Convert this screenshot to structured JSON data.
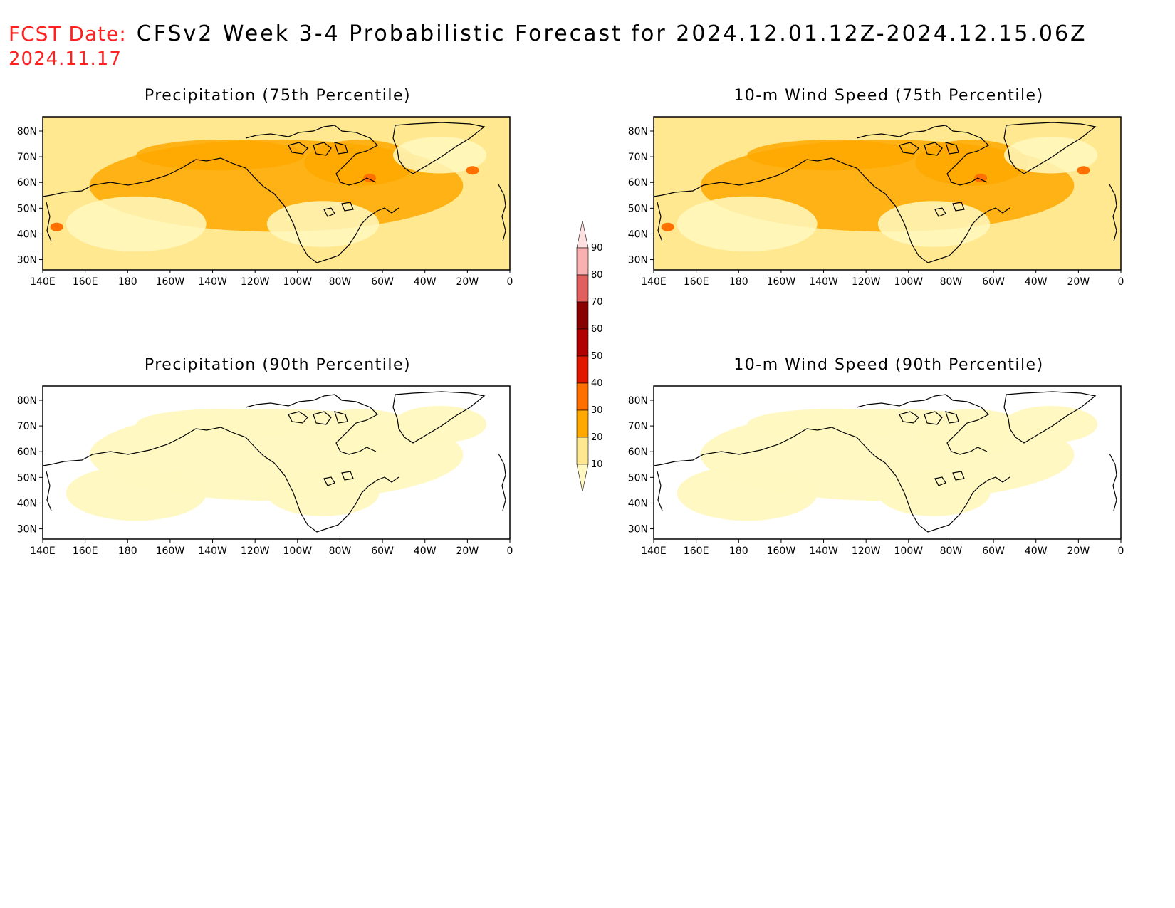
{
  "header": {
    "fcst_label": "FCST Date:",
    "title": "CFSv2 Week 3-4 Probabilistic Forecast for 2024.12.01.12Z-2024.12.15.06Z",
    "fcst_date": "2024.11.17"
  },
  "panels": [
    {
      "title": "Precipitation (75th Percentile)",
      "level": "high"
    },
    {
      "title": "10-m Wind Speed (75th Percentile)",
      "level": "high"
    },
    {
      "title": "Precipitation (90th Percentile)",
      "level": "low"
    },
    {
      "title": "10-m Wind Speed (90th Percentile)",
      "level": "low"
    }
  ],
  "axes": {
    "lon_labels": [
      "140E",
      "160E",
      "180",
      "160W",
      "140W",
      "120W",
      "100W",
      "80W",
      "60W",
      "40W",
      "20W",
      "0"
    ],
    "lat_labels": [
      "80N",
      "70N",
      "60N",
      "50N",
      "40N",
      "30N"
    ]
  },
  "colorbar": {
    "levels": [
      "10",
      "20",
      "30",
      "40",
      "50",
      "60",
      "70",
      "80",
      "90"
    ],
    "colors": [
      "#fff8c0",
      "#ffe890",
      "#ffa800",
      "#ff7000",
      "#e01800",
      "#b00000",
      "#880000",
      "#e06060",
      "#f8b0b0",
      "#ffe0e0"
    ]
  }
}
